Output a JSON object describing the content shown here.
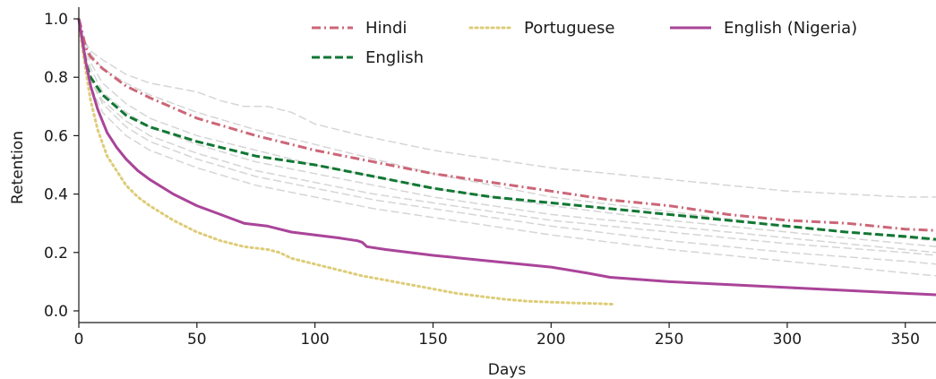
{
  "chart_data": {
    "type": "line",
    "xlabel": "Days",
    "ylabel": "Retention",
    "xlim": [
      0,
      363
    ],
    "ylim": [
      -0.04,
      1.04
    ],
    "xticks": [
      0,
      50,
      100,
      150,
      200,
      250,
      300,
      350
    ],
    "yticks": [
      0.0,
      0.2,
      0.4,
      0.6,
      0.8,
      1.0
    ],
    "xtick_labels": [
      "0",
      "50",
      "100",
      "150",
      "200",
      "250",
      "300",
      "350"
    ],
    "ytick_labels": [
      "0.0",
      "0.2",
      "0.4",
      "0.6",
      "0.8",
      "1.0"
    ],
    "grid": false,
    "legend_position": "top-center",
    "series": [
      {
        "name": "Hindi",
        "color": "#cc6677",
        "style": "dashdot",
        "legend": true,
        "x": [
          0,
          1,
          3,
          5,
          10,
          20,
          30,
          50,
          75,
          100,
          125,
          150,
          175,
          200,
          225,
          250,
          275,
          300,
          325,
          350,
          363
        ],
        "y": [
          1.0,
          0.97,
          0.9,
          0.87,
          0.83,
          0.77,
          0.73,
          0.66,
          0.6,
          0.55,
          0.51,
          0.47,
          0.44,
          0.41,
          0.38,
          0.36,
          0.33,
          0.31,
          0.3,
          0.28,
          0.275
        ]
      },
      {
        "name": "English",
        "color": "#117733",
        "style": "dashed",
        "legend": true,
        "x": [
          0,
          1,
          3,
          5,
          10,
          20,
          30,
          50,
          75,
          100,
          125,
          150,
          175,
          200,
          225,
          250,
          275,
          300,
          325,
          350,
          363
        ],
        "y": [
          1.0,
          0.95,
          0.85,
          0.8,
          0.74,
          0.67,
          0.63,
          0.58,
          0.53,
          0.5,
          0.46,
          0.42,
          0.39,
          0.37,
          0.35,
          0.33,
          0.31,
          0.29,
          0.27,
          0.255,
          0.245
        ]
      },
      {
        "name": "Portuguese",
        "color": "#ddcc77",
        "style": "dotted",
        "legend": true,
        "x": [
          0,
          1,
          3,
          5,
          8,
          12,
          16,
          20,
          25,
          30,
          40,
          50,
          60,
          70,
          80,
          85,
          90,
          100,
          110,
          120,
          130,
          140,
          150,
          160,
          170,
          180,
          190,
          200,
          210,
          220,
          226
        ],
        "y": [
          1.0,
          0.93,
          0.82,
          0.72,
          0.62,
          0.53,
          0.48,
          0.43,
          0.39,
          0.36,
          0.31,
          0.27,
          0.24,
          0.22,
          0.21,
          0.2,
          0.18,
          0.16,
          0.14,
          0.12,
          0.105,
          0.09,
          0.075,
          0.06,
          0.05,
          0.04,
          0.033,
          0.03,
          0.027,
          0.025,
          0.023
        ]
      },
      {
        "name": "English (Nigeria)",
        "color": "#aa4499",
        "style": "solid",
        "legend": true,
        "x": [
          0,
          1,
          3,
          5,
          8,
          12,
          16,
          20,
          25,
          30,
          40,
          50,
          60,
          70,
          80,
          90,
          100,
          110,
          118,
          120,
          122,
          130,
          150,
          175,
          200,
          215,
          225,
          250,
          275,
          300,
          325,
          350,
          363
        ],
        "y": [
          1.0,
          0.95,
          0.85,
          0.77,
          0.69,
          0.61,
          0.56,
          0.52,
          0.48,
          0.45,
          0.4,
          0.36,
          0.33,
          0.3,
          0.29,
          0.27,
          0.26,
          0.25,
          0.24,
          0.235,
          0.22,
          0.21,
          0.19,
          0.17,
          0.15,
          0.13,
          0.115,
          0.1,
          0.09,
          0.08,
          0.07,
          0.06,
          0.055
        ]
      },
      {
        "color": "#d5d5d5",
        "style": "dashed",
        "legend": false,
        "x": [
          0,
          2,
          5,
          10,
          20,
          30,
          50,
          60,
          70,
          80,
          90,
          100,
          120,
          150,
          175,
          200,
          250,
          300,
          350,
          363
        ],
        "y": [
          1.0,
          0.93,
          0.89,
          0.86,
          0.81,
          0.78,
          0.75,
          0.72,
          0.7,
          0.7,
          0.68,
          0.64,
          0.6,
          0.55,
          0.52,
          0.49,
          0.45,
          0.41,
          0.39,
          0.39
        ]
      },
      {
        "color": "#d5d5d5",
        "style": "dashed",
        "legend": false,
        "x": [
          0,
          2,
          5,
          10,
          20,
          30,
          50,
          75,
          100,
          125,
          150,
          175,
          200,
          250,
          300,
          350,
          363
        ],
        "y": [
          1.0,
          0.93,
          0.88,
          0.83,
          0.78,
          0.74,
          0.68,
          0.62,
          0.57,
          0.52,
          0.47,
          0.43,
          0.39,
          0.34,
          0.29,
          0.25,
          0.24
        ]
      },
      {
        "color": "#d5d5d5",
        "style": "dashed",
        "legend": false,
        "x": [
          0,
          2,
          5,
          10,
          20,
          30,
          50,
          75,
          100,
          125,
          150,
          175,
          200,
          250,
          300,
          350,
          363
        ],
        "y": [
          1.0,
          0.92,
          0.85,
          0.78,
          0.71,
          0.66,
          0.6,
          0.55,
          0.5,
          0.46,
          0.42,
          0.39,
          0.36,
          0.31,
          0.27,
          0.23,
          0.22
        ]
      },
      {
        "color": "#d5d5d5",
        "style": "dashed",
        "legend": false,
        "x": [
          0,
          2,
          5,
          10,
          20,
          30,
          50,
          75,
          100,
          125,
          150,
          175,
          200,
          250,
          300,
          350,
          363
        ],
        "y": [
          1.0,
          0.9,
          0.83,
          0.75,
          0.68,
          0.63,
          0.57,
          0.51,
          0.47,
          0.43,
          0.39,
          0.36,
          0.33,
          0.29,
          0.25,
          0.21,
          0.2
        ]
      },
      {
        "color": "#d5d5d5",
        "style": "dashed",
        "legend": false,
        "x": [
          0,
          2,
          5,
          10,
          20,
          30,
          50,
          75,
          100,
          125,
          150,
          175,
          200,
          250,
          300,
          350,
          363
        ],
        "y": [
          1.0,
          0.89,
          0.8,
          0.72,
          0.65,
          0.6,
          0.54,
          0.48,
          0.44,
          0.4,
          0.37,
          0.34,
          0.31,
          0.27,
          0.23,
          0.2,
          0.19
        ]
      },
      {
        "color": "#d5d5d5",
        "style": "dashed",
        "legend": false,
        "x": [
          0,
          2,
          5,
          10,
          20,
          30,
          50,
          75,
          100,
          125,
          150,
          175,
          200,
          250,
          300,
          350,
          363
        ],
        "y": [
          1.0,
          0.88,
          0.79,
          0.71,
          0.63,
          0.58,
          0.52,
          0.46,
          0.42,
          0.38,
          0.35,
          0.32,
          0.29,
          0.24,
          0.2,
          0.17,
          0.16
        ]
      },
      {
        "color": "#d5d5d5",
        "style": "dashed",
        "legend": false,
        "x": [
          0,
          2,
          5,
          10,
          20,
          30,
          50,
          75,
          100,
          125,
          150,
          175,
          200,
          250,
          300,
          350,
          363
        ],
        "y": [
          1.0,
          0.87,
          0.77,
          0.68,
          0.6,
          0.55,
          0.49,
          0.43,
          0.39,
          0.35,
          0.32,
          0.29,
          0.26,
          0.21,
          0.17,
          0.13,
          0.12
        ]
      }
    ]
  }
}
